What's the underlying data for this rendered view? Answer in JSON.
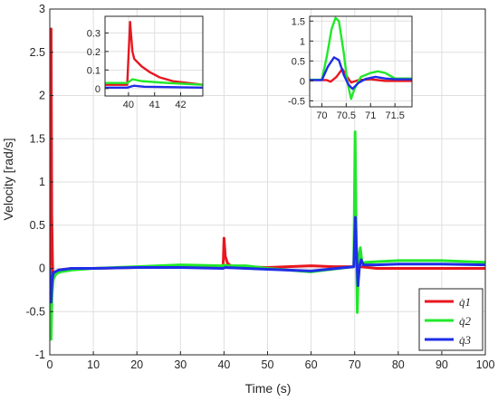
{
  "chart_data": [
    {
      "id": "main",
      "type": "line",
      "title": "",
      "xlabel": "Time (s)",
      "ylabel": "Velocity [rad/s]",
      "xlim": [
        0,
        100
      ],
      "ylim": [
        -1,
        3
      ],
      "xticks": [
        0,
        10,
        20,
        30,
        40,
        50,
        60,
        70,
        80,
        90,
        100
      ],
      "yticks": [
        -1,
        -0.5,
        0,
        0.5,
        1,
        1.5,
        2,
        2.5,
        3
      ],
      "grid": true,
      "legend": "bottom-right",
      "series": [
        {
          "name": "q̇1",
          "color": "#e8171f",
          "points": [
            [
              0,
              0
            ],
            [
              0.3,
              2.77
            ],
            [
              0.45,
              0.6
            ],
            [
              0.7,
              -0.15
            ],
            [
              1.2,
              -0.05
            ],
            [
              2,
              -0.02
            ],
            [
              5,
              0.0
            ],
            [
              10,
              0.0
            ],
            [
              20,
              0.01
            ],
            [
              30,
              0.02
            ],
            [
              39.8,
              0.02
            ],
            [
              40,
              0.35
            ],
            [
              40.3,
              0.14
            ],
            [
              40.8,
              0.06
            ],
            [
              41.5,
              0.03
            ],
            [
              43,
              0.02
            ],
            [
              50,
              0.01
            ],
            [
              60,
              0.03
            ],
            [
              65,
              0.02
            ],
            [
              69.8,
              0.02
            ],
            [
              70.3,
              0.32
            ],
            [
              70.6,
              0.05
            ],
            [
              71,
              0.02
            ],
            [
              71.5,
              0.02
            ],
            [
              75,
              0.0
            ],
            [
              100,
              0.0
            ]
          ]
        },
        {
          "name": "q̇2",
          "color": "#21e82a",
          "points": [
            [
              0,
              0
            ],
            [
              0.3,
              -0.82
            ],
            [
              0.5,
              -0.3
            ],
            [
              0.8,
              -0.12
            ],
            [
              1.5,
              -0.06
            ],
            [
              2.5,
              -0.04
            ],
            [
              5,
              -0.02
            ],
            [
              10,
              0.0
            ],
            [
              20,
              0.02
            ],
            [
              30,
              0.04
            ],
            [
              39.8,
              0.03
            ],
            [
              40,
              0.04
            ],
            [
              41,
              0.03
            ],
            [
              45,
              0.03
            ],
            [
              50,
              0.0
            ],
            [
              60,
              -0.04
            ],
            [
              69.8,
              0.02
            ],
            [
              70.1,
              1.58
            ],
            [
              70.4,
              0.2
            ],
            [
              70.6,
              -0.51
            ],
            [
              70.9,
              0.1
            ],
            [
              71.3,
              0.24
            ],
            [
              71.7,
              0.06
            ],
            [
              72.5,
              0.07
            ],
            [
              80,
              0.09
            ],
            [
              90,
              0.09
            ],
            [
              100,
              0.07
            ]
          ]
        },
        {
          "name": "q̇3",
          "color": "#1f2de8",
          "points": [
            [
              0,
              0
            ],
            [
              0.3,
              -0.39
            ],
            [
              0.5,
              -0.15
            ],
            [
              0.8,
              -0.05
            ],
            [
              2,
              -0.02
            ],
            [
              5,
              0.0
            ],
            [
              10,
              0.0
            ],
            [
              20,
              0.01
            ],
            [
              30,
              0.01
            ],
            [
              39.8,
              0.0
            ],
            [
              40.2,
              0.01
            ],
            [
              45,
              0.0
            ],
            [
              50,
              -0.01
            ],
            [
              60,
              -0.03
            ],
            [
              69.8,
              0.02
            ],
            [
              70.15,
              0.59
            ],
            [
              70.5,
              0.1
            ],
            [
              70.75,
              -0.2
            ],
            [
              71.1,
              0.02
            ],
            [
              71.5,
              0.1
            ],
            [
              72,
              0.04
            ],
            [
              75,
              0.04
            ],
            [
              80,
              0.05
            ],
            [
              90,
              0.05
            ],
            [
              100,
              0.04
            ]
          ]
        }
      ]
    },
    {
      "id": "inset-left",
      "type": "line",
      "xlim": [
        39.1,
        42.85
      ],
      "ylim": [
        -0.04,
        0.39
      ],
      "xticks": [
        40,
        41,
        42
      ],
      "yticks": [
        0,
        0.1,
        0.2,
        0.3
      ],
      "ytick_labels": [
        "0",
        "0.1",
        "0.2",
        "0.3"
      ],
      "grid": true,
      "series": [
        {
          "name": "q̇1",
          "color": "#e8171f",
          "points": [
            [
              39.1,
              0.02
            ],
            [
              39.95,
              0.02
            ],
            [
              40.06,
              0.36
            ],
            [
              40.15,
              0.2
            ],
            [
              40.22,
              0.16
            ],
            [
              40.5,
              0.12
            ],
            [
              40.8,
              0.09
            ],
            [
              41.2,
              0.06
            ],
            [
              41.7,
              0.04
            ],
            [
              42.3,
              0.03
            ],
            [
              42.85,
              0.02
            ]
          ]
        },
        {
          "name": "q̇2",
          "color": "#21e82a",
          "points": [
            [
              39.1,
              0.03
            ],
            [
              39.95,
              0.03
            ],
            [
              40.15,
              0.05
            ],
            [
              40.5,
              0.04
            ],
            [
              41.5,
              0.03
            ],
            [
              42.85,
              0.02
            ]
          ]
        },
        {
          "name": "q̇3",
          "color": "#1f2de8",
          "points": [
            [
              39.1,
              0.005
            ],
            [
              39.95,
              0.005
            ],
            [
              40.2,
              0.015
            ],
            [
              40.6,
              0.01
            ],
            [
              42.85,
              0.005
            ]
          ]
        }
      ]
    },
    {
      "id": "inset-right",
      "type": "line",
      "xlim": [
        69.75,
        71.85
      ],
      "ylim": [
        -0.65,
        1.62
      ],
      "xticks": [
        70,
        70.5,
        71,
        71.5
      ],
      "xtick_labels": [
        "70",
        "70.5",
        "71",
        "71.5"
      ],
      "yticks": [
        -0.5,
        0,
        0.5,
        1,
        1.5
      ],
      "ytick_labels": [
        "-0.5",
        "0",
        "0.5",
        "1",
        "1.5"
      ],
      "grid": true,
      "series": [
        {
          "name": "q̇1",
          "color": "#e8171f",
          "points": [
            [
              69.75,
              0.02
            ],
            [
              70.1,
              0.02
            ],
            [
              70.18,
              -0.02
            ],
            [
              70.3,
              0.1
            ],
            [
              70.42,
              0.3
            ],
            [
              70.52,
              0.1
            ],
            [
              70.6,
              -0.04
            ],
            [
              70.75,
              0.02
            ],
            [
              71.0,
              0.04
            ],
            [
              71.3,
              0.0
            ],
            [
              71.85,
              0.0
            ]
          ]
        },
        {
          "name": "q̇2",
          "color": "#21e82a",
          "points": [
            [
              69.75,
              0.03
            ],
            [
              70.0,
              0.03
            ],
            [
              70.1,
              0.6
            ],
            [
              70.2,
              1.3
            ],
            [
              70.28,
              1.58
            ],
            [
              70.35,
              1.5
            ],
            [
              70.45,
              0.7
            ],
            [
              70.52,
              0.0
            ],
            [
              70.6,
              -0.45
            ],
            [
              70.67,
              -0.2
            ],
            [
              70.8,
              0.1
            ],
            [
              71.0,
              0.2
            ],
            [
              71.15,
              0.24
            ],
            [
              71.3,
              0.2
            ],
            [
              71.5,
              0.06
            ],
            [
              71.85,
              0.06
            ]
          ]
        },
        {
          "name": "q̇3",
          "color": "#1f2de8",
          "points": [
            [
              69.75,
              0.02
            ],
            [
              70.0,
              0.02
            ],
            [
              70.12,
              0.35
            ],
            [
              70.25,
              0.59
            ],
            [
              70.35,
              0.52
            ],
            [
              70.45,
              0.15
            ],
            [
              70.55,
              -0.1
            ],
            [
              70.63,
              -0.2
            ],
            [
              70.75,
              -0.05
            ],
            [
              70.9,
              0.05
            ],
            [
              71.1,
              0.1
            ],
            [
              71.3,
              0.06
            ],
            [
              71.5,
              0.04
            ],
            [
              71.85,
              0.04
            ]
          ]
        }
      ]
    }
  ],
  "legend_entries": [
    {
      "name": "q̇1",
      "color": "#e8171f"
    },
    {
      "name": "q̇2",
      "color": "#21e82a"
    },
    {
      "name": "q̇3",
      "color": "#1f2de8"
    }
  ]
}
